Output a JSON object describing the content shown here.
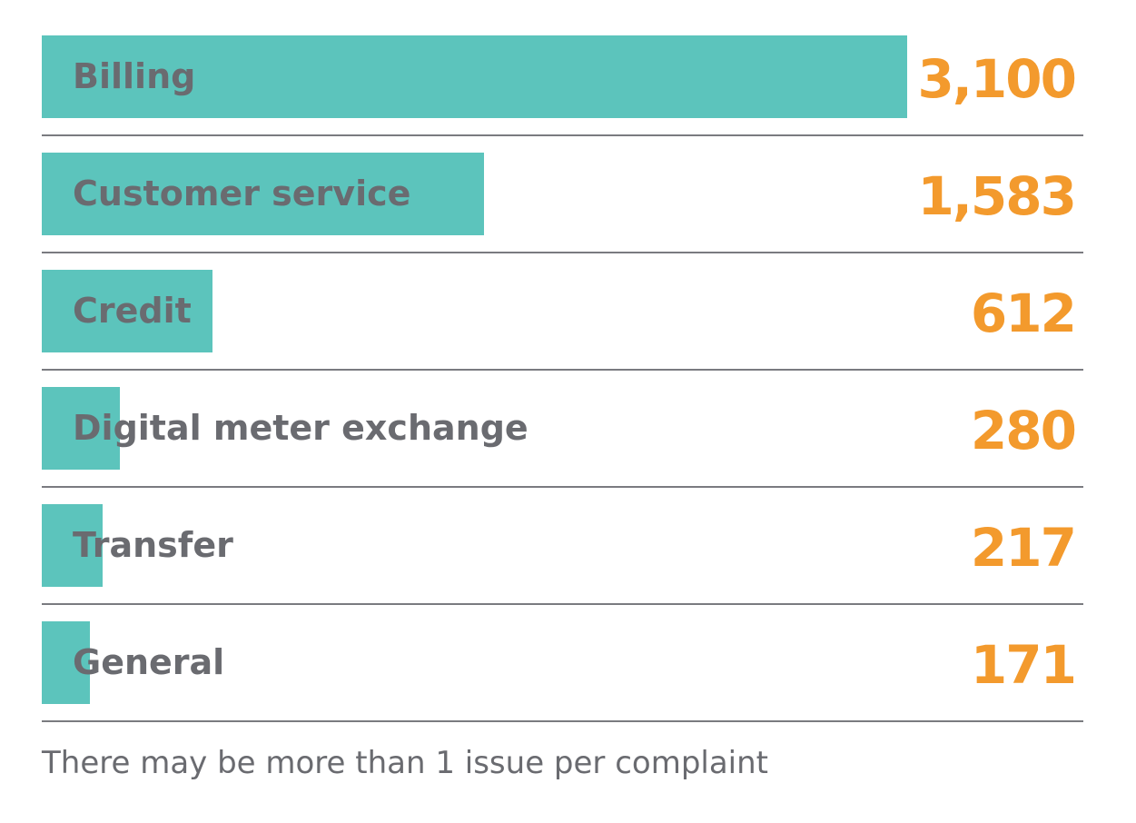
{
  "chart_data": {
    "type": "bar",
    "orientation": "horizontal",
    "categories": [
      "Billing",
      "Customer service",
      "Credit",
      "Digital meter exchange",
      "Transfer",
      "General"
    ],
    "values": [
      3100,
      1583,
      612,
      280,
      217,
      171
    ],
    "value_labels": [
      "3,100",
      "1,583",
      "612",
      "280",
      "217",
      "171"
    ],
    "grid": false,
    "colors": {
      "bar": "#5cc4bc",
      "value": "#f39a2d",
      "label": "#6a6b70",
      "divider": "#7a7b80"
    }
  },
  "footnote": "There may be more than 1 issue per complaint"
}
